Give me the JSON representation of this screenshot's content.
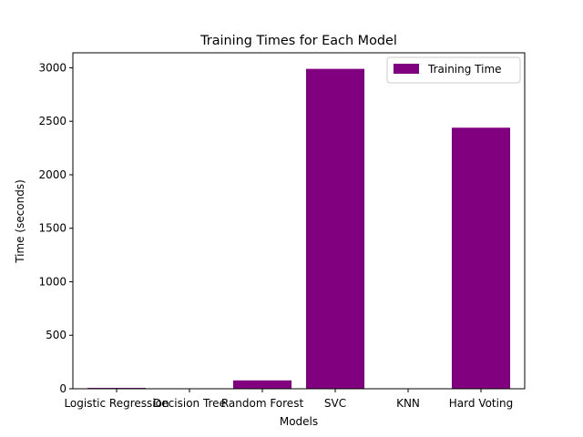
{
  "chart_data": {
    "type": "bar",
    "title": "Training Times for Each Model",
    "xlabel": "Models",
    "ylabel": "Time (seconds)",
    "categories": [
      "Logistic Regression",
      "Decision Tree",
      "Random Forest",
      "SVC",
      "KNN",
      "Hard Voting"
    ],
    "series": [
      {
        "name": "Training Time",
        "values": [
          8,
          1,
          78,
          2990,
          0.5,
          2440
        ],
        "color": "#800080"
      }
    ],
    "ylim": [
      0,
      3140
    ],
    "yticks": [
      0,
      500,
      1000,
      1500,
      2000,
      2500,
      3000
    ],
    "grid": false,
    "legend_position": "top-right"
  }
}
